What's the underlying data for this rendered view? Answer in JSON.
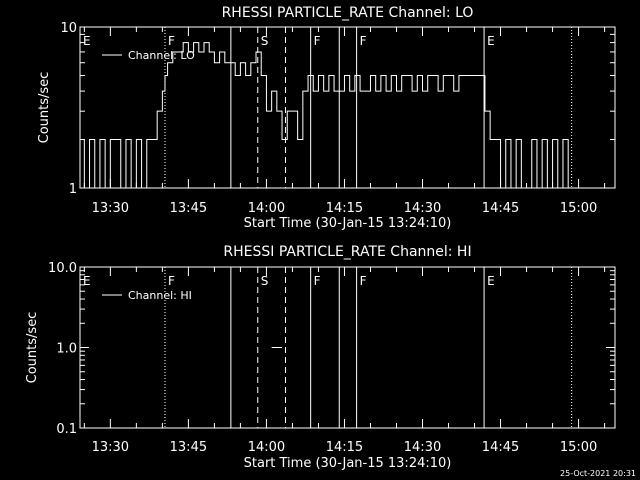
{
  "timestamp": "25-Oct-2021 20:31",
  "colors": {
    "background": "#000000",
    "foreground": "#ffffff"
  },
  "chart_data": [
    {
      "type": "line",
      "title": "RHESSI PARTICLE_RATE Channel: LO",
      "xlabel": "Start Time (30-Jan-15 13:24:10)",
      "ylabel": "Counts/sec",
      "yscale": "log",
      "ylim": [
        1,
        10
      ],
      "xlim": [
        "13:24:10",
        "15:07:00"
      ],
      "xticks": [
        "13:30",
        "13:45",
        "14:00",
        "14:15",
        "14:30",
        "14:45",
        "15:00"
      ],
      "yticks": [
        "1",
        "10"
      ],
      "legend": {
        "label": "Channel: LO",
        "placement": "top-left"
      },
      "markers": [
        {
          "time": "13:24:10",
          "label": "E",
          "style": "none"
        },
        {
          "time": "13:40:30",
          "label": "F",
          "style": "dotted"
        },
        {
          "time": "13:53:10",
          "label": "",
          "style": "solid"
        },
        {
          "time": "13:58:20",
          "label": "S",
          "style": "dashed"
        },
        {
          "time": "14:03:40",
          "label": "",
          "style": "dashed"
        },
        {
          "time": "14:08:30",
          "label": "F",
          "style": "solid"
        },
        {
          "time": "14:14:00",
          "label": "",
          "style": "solid"
        },
        {
          "time": "14:17:20",
          "label": "F",
          "style": "solid"
        },
        {
          "time": "14:41:50",
          "label": "E",
          "style": "solid"
        },
        {
          "time": "14:58:40",
          "label": "",
          "style": "dotted"
        }
      ],
      "series": [
        {
          "x": [
            "13:24:10",
            "13:25:00",
            "13:26:00",
            "13:27:00",
            "13:28:00",
            "13:29:00",
            "13:30:00",
            "13:31:00",
            "13:32:00",
            "13:33:00",
            "13:34:00",
            "13:35:00",
            "13:36:00",
            "13:37:00",
            "13:38:00",
            "13:39:00",
            "13:40:00",
            "13:40:30",
            "13:41:00",
            "13:42:00",
            "13:43:00",
            "13:44:00",
            "13:45:00",
            "13:46:00",
            "13:47:00",
            "13:48:00",
            "13:49:00",
            "13:50:00",
            "13:51:00",
            "13:52:00",
            "13:53:00",
            "13:54:00",
            "13:55:00",
            "13:56:00",
            "13:57:00",
            "13:58:00",
            "13:59:00",
            "14:00:00",
            "14:01:00",
            "14:02:00",
            "14:03:00",
            "14:04:00",
            "14:05:00",
            "14:06:00",
            "14:07:00",
            "14:08:00",
            "14:09:00",
            "14:10:00",
            "14:11:00",
            "14:12:00",
            "14:13:00",
            "14:14:00",
            "14:15:00",
            "14:16:00",
            "14:17:00",
            "14:18:00",
            "14:19:00",
            "14:20:00",
            "14:21:00",
            "14:22:00",
            "14:23:00",
            "14:24:00",
            "14:25:00",
            "14:26:00",
            "14:27:00",
            "14:28:00",
            "14:29:00",
            "14:30:00",
            "14:31:00",
            "14:32:00",
            "14:33:00",
            "14:34:00",
            "14:35:00",
            "14:36:00",
            "14:37:00",
            "14:38:00",
            "14:39:00",
            "14:40:00",
            "14:41:00",
            "14:42:00",
            "14:43:00",
            "14:44:00",
            "14:45:00",
            "14:46:00",
            "14:47:00",
            "14:48:00",
            "14:49:00",
            "14:50:00",
            "14:51:00",
            "14:52:00",
            "14:53:00",
            "14:54:00",
            "14:55:00",
            "14:56:00",
            "14:57:00",
            "14:58:00"
          ],
          "values": [
            2,
            1,
            2,
            1,
            2,
            1,
            2,
            2,
            1,
            2,
            1,
            2,
            1,
            2,
            2,
            3,
            4,
            5,
            6,
            7,
            7,
            8,
            7,
            8,
            7,
            8,
            7,
            6,
            7,
            6,
            6,
            5,
            6,
            5,
            6,
            7,
            5,
            3,
            4,
            3,
            2,
            3,
            3,
            2,
            4,
            5,
            4,
            5,
            4,
            5,
            4,
            4,
            5,
            4,
            5,
            4,
            4,
            5,
            4,
            5,
            4,
            5,
            4,
            5,
            5,
            4,
            5,
            4,
            5,
            5,
            4,
            5,
            5,
            4,
            5,
            5,
            5,
            5,
            5,
            3,
            2,
            2,
            1,
            2,
            1,
            2,
            1,
            1,
            2,
            1,
            2,
            1,
            2,
            1,
            2,
            1
          ]
        }
      ]
    },
    {
      "type": "line",
      "title": "RHESSI PARTICLE_RATE Channel: HI",
      "xlabel": "Start Time (30-Jan-15 13:24:10)",
      "ylabel": "Counts/sec",
      "yscale": "log",
      "ylim": [
        0.1,
        10
      ],
      "xlim": [
        "13:24:10",
        "15:07:00"
      ],
      "xticks": [
        "13:30",
        "13:45",
        "14:00",
        "14:15",
        "14:30",
        "14:45",
        "15:00"
      ],
      "yticks": [
        "0.1",
        "1.0",
        "10.0"
      ],
      "legend": {
        "label": "Channel: HI",
        "placement": "top-left"
      },
      "markers": [
        {
          "time": "13:24:10",
          "label": "E",
          "style": "none"
        },
        {
          "time": "13:40:30",
          "label": "F",
          "style": "dotted"
        },
        {
          "time": "13:53:10",
          "label": "",
          "style": "solid"
        },
        {
          "time": "13:58:20",
          "label": "S",
          "style": "dashed"
        },
        {
          "time": "14:03:40",
          "label": "",
          "style": "dashed"
        },
        {
          "time": "14:08:30",
          "label": "F",
          "style": "solid"
        },
        {
          "time": "14:14:00",
          "label": "",
          "style": "solid"
        },
        {
          "time": "14:17:20",
          "label": "F",
          "style": "solid"
        },
        {
          "time": "14:41:50",
          "label": "E",
          "style": "solid"
        },
        {
          "time": "14:58:40",
          "label": "",
          "style": "dotted"
        }
      ],
      "series": [
        {
          "x": [
            "14:01:00",
            "14:02:00"
          ],
          "values": [
            1,
            1
          ]
        }
      ]
    }
  ]
}
